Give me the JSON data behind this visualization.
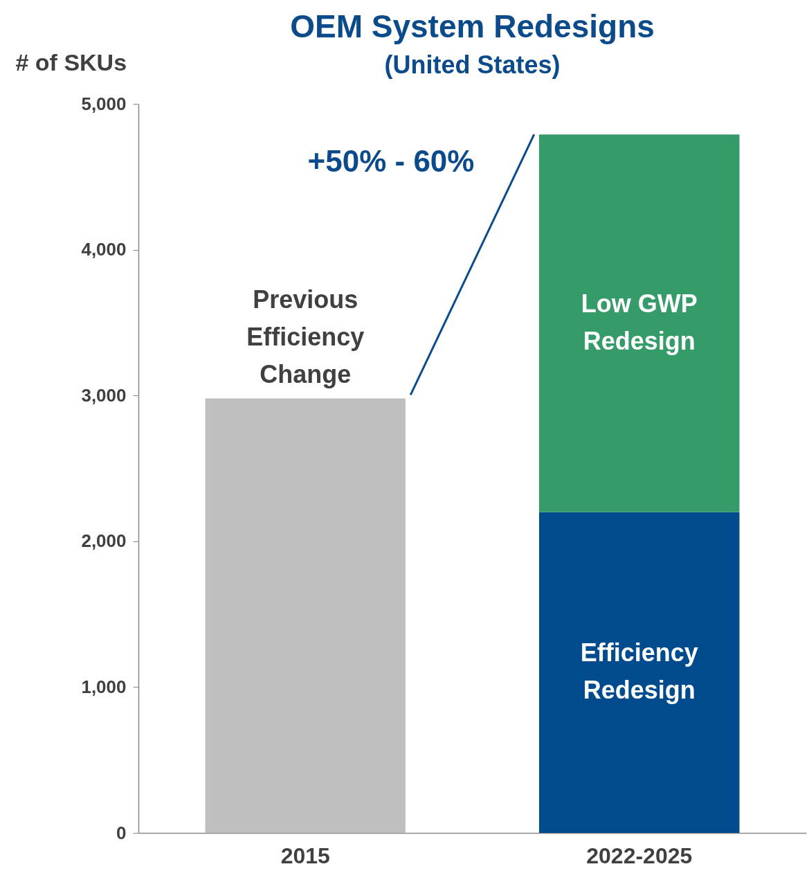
{
  "chart_data": {
    "type": "bar",
    "title": "OEM System Redesigns",
    "subtitle": "(United States)",
    "ylabel": "# of SKUs",
    "categories": [
      "2015",
      "2022-2025"
    ],
    "stacked": true,
    "series": [
      {
        "name": "Previous Efficiency Change",
        "color": "#bfbfbf",
        "values": [
          2980,
          null
        ]
      },
      {
        "name": "Efficiency Redesign",
        "color": "#004b8d",
        "values": [
          null,
          2200
        ]
      },
      {
        "name": "Low GWP Redesign",
        "color": "#359b69",
        "values": [
          null,
          2590
        ]
      }
    ],
    "ylim": [
      0,
      5000
    ],
    "yticks": [
      0,
      {
        "value": 1000,
        "label": "1,000"
      },
      {
        "value": 2000,
        "label": "2,000"
      },
      {
        "value": 3000,
        "label": "3,000"
      },
      {
        "value": 4000,
        "label": "4,000"
      },
      {
        "value": 5000,
        "label": "5,000"
      }
    ],
    "annotations": [
      "+50% - 60%"
    ]
  }
}
